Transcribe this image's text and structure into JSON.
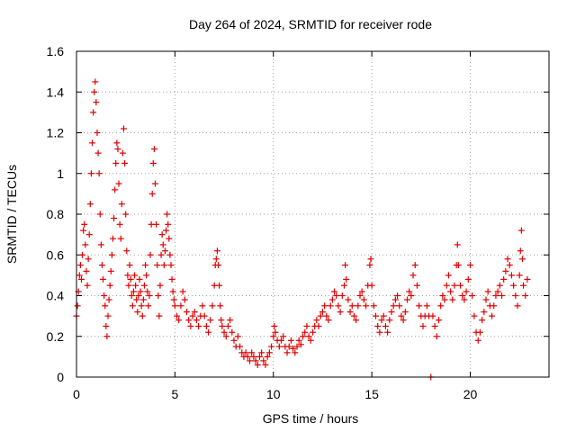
{
  "chart_data": {
    "type": "scatter",
    "title": "Day 264 of 2024, SRMTID for receiver rode",
    "xlabel": "GPS time / hours",
    "ylabel": "SRMTID / TECUs",
    "xlim": [
      0,
      24
    ],
    "ylim": [
      0,
      1.6
    ],
    "xticks": [
      0,
      5,
      10,
      15,
      20
    ],
    "yticks": [
      0,
      0.2,
      0.4,
      0.6,
      0.8,
      1,
      1.2,
      1.4,
      1.6
    ],
    "xtick_labels": [
      "0",
      "5",
      "10",
      "15",
      "20"
    ],
    "ytick_labels": [
      "0",
      "0.2",
      "0.4",
      "0.6",
      "0.8",
      "1",
      "1.2",
      "1.4",
      "1.6"
    ],
    "grid": true,
    "marker": "+",
    "color": "#e00000",
    "series": [
      {
        "name": "SRMTID",
        "points": [
          [
            0.0,
            0.3
          ],
          [
            0.05,
            0.35
          ],
          [
            0.1,
            0.42
          ],
          [
            0.15,
            0.5
          ],
          [
            0.2,
            0.55
          ],
          [
            0.25,
            0.48
          ],
          [
            0.3,
            0.6
          ],
          [
            0.35,
            0.72
          ],
          [
            0.4,
            0.75
          ],
          [
            0.45,
            0.65
          ],
          [
            0.5,
            0.52
          ],
          [
            0.55,
            0.45
          ],
          [
            0.6,
            0.58
          ],
          [
            0.65,
            0.7
          ],
          [
            0.7,
            0.85
          ],
          [
            0.75,
            1.0
          ],
          [
            0.8,
            1.15
          ],
          [
            0.85,
            1.3
          ],
          [
            0.9,
            1.4
          ],
          [
            0.95,
            1.45
          ],
          [
            1.0,
            1.35
          ],
          [
            1.05,
            1.2
          ],
          [
            1.1,
            1.1
          ],
          [
            1.15,
            1.0
          ],
          [
            1.2,
            0.8
          ],
          [
            1.25,
            0.65
          ],
          [
            1.3,
            0.55
          ],
          [
            1.35,
            0.48
          ],
          [
            1.4,
            0.4
          ],
          [
            1.45,
            0.35
          ],
          [
            1.5,
            0.25
          ],
          [
            1.55,
            0.2
          ],
          [
            1.6,
            0.3
          ],
          [
            1.65,
            0.38
          ],
          [
            1.7,
            0.45
          ],
          [
            1.75,
            0.52
          ],
          [
            1.8,
            0.6
          ],
          [
            1.85,
            0.68
          ],
          [
            1.9,
            0.78
          ],
          [
            1.95,
            0.92
          ],
          [
            2.0,
            1.05
          ],
          [
            2.05,
            1.15
          ],
          [
            2.1,
            1.12
          ],
          [
            2.15,
            0.95
          ],
          [
            2.2,
            0.75
          ],
          [
            2.25,
            0.68
          ],
          [
            2.3,
            0.85
          ],
          [
            2.35,
            1.1
          ],
          [
            2.4,
            1.22
          ],
          [
            2.45,
            1.05
          ],
          [
            2.5,
            0.8
          ],
          [
            2.55,
            0.62
          ],
          [
            2.6,
            0.5
          ],
          [
            2.65,
            0.45
          ],
          [
            2.7,
            0.55
          ],
          [
            2.75,
            0.48
          ],
          [
            2.8,
            0.4
          ],
          [
            2.85,
            0.35
          ],
          [
            2.9,
            0.42
          ],
          [
            2.95,
            0.5
          ],
          [
            3.0,
            0.45
          ],
          [
            3.05,
            0.38
          ],
          [
            3.1,
            0.32
          ],
          [
            3.15,
            0.4
          ],
          [
            3.2,
            0.48
          ],
          [
            3.25,
            0.42
          ],
          [
            3.3,
            0.35
          ],
          [
            3.35,
            0.3
          ],
          [
            3.4,
            0.38
          ],
          [
            3.45,
            0.45
          ],
          [
            3.5,
            0.55
          ],
          [
            3.55,
            0.5
          ],
          [
            3.6,
            0.42
          ],
          [
            3.65,
            0.35
          ],
          [
            3.7,
            0.4
          ],
          [
            3.75,
            0.6
          ],
          [
            3.8,
            0.75
          ],
          [
            3.85,
            0.9
          ],
          [
            3.9,
            1.05
          ],
          [
            3.95,
            1.12
          ],
          [
            4.0,
            0.95
          ],
          [
            4.05,
            0.75
          ],
          [
            4.1,
            0.55
          ],
          [
            4.15,
            0.4
          ],
          [
            4.2,
            0.3
          ],
          [
            4.25,
            0.45
          ],
          [
            4.3,
            0.6
          ],
          [
            4.35,
            0.7
          ],
          [
            4.4,
            0.65
          ],
          [
            4.45,
            0.55
          ],
          [
            4.5,
            0.62
          ],
          [
            4.55,
            0.72
          ],
          [
            4.6,
            0.8
          ],
          [
            4.65,
            0.75
          ],
          [
            4.7,
            0.68
          ],
          [
            4.75,
            0.6
          ],
          [
            4.8,
            0.55
          ],
          [
            4.85,
            0.48
          ],
          [
            4.9,
            0.42
          ],
          [
            4.95,
            0.38
          ],
          [
            5.0,
            0.35
          ],
          [
            5.1,
            0.3
          ],
          [
            5.2,
            0.28
          ],
          [
            5.3,
            0.35
          ],
          [
            5.4,
            0.42
          ],
          [
            5.5,
            0.38
          ],
          [
            5.6,
            0.32
          ],
          [
            5.7,
            0.28
          ],
          [
            5.8,
            0.25
          ],
          [
            5.9,
            0.3
          ],
          [
            6.0,
            0.32
          ],
          [
            6.1,
            0.28
          ],
          [
            6.2,
            0.25
          ],
          [
            6.3,
            0.3
          ],
          [
            6.4,
            0.35
          ],
          [
            6.5,
            0.3
          ],
          [
            6.6,
            0.25
          ],
          [
            6.7,
            0.22
          ],
          [
            6.8,
            0.28
          ],
          [
            6.9,
            0.35
          ],
          [
            7.0,
            0.45
          ],
          [
            7.05,
            0.55
          ],
          [
            7.1,
            0.58
          ],
          [
            7.15,
            0.62
          ],
          [
            7.2,
            0.55
          ],
          [
            7.25,
            0.45
          ],
          [
            7.3,
            0.35
          ],
          [
            7.35,
            0.28
          ],
          [
            7.4,
            0.25
          ],
          [
            7.5,
            0.22
          ],
          [
            7.6,
            0.2
          ],
          [
            7.7,
            0.25
          ],
          [
            7.8,
            0.28
          ],
          [
            7.9,
            0.22
          ],
          [
            8.0,
            0.18
          ],
          [
            8.1,
            0.15
          ],
          [
            8.2,
            0.2
          ],
          [
            8.3,
            0.15
          ],
          [
            8.4,
            0.12
          ],
          [
            8.5,
            0.1
          ],
          [
            8.6,
            0.12
          ],
          [
            8.7,
            0.1
          ],
          [
            8.8,
            0.08
          ],
          [
            8.9,
            0.12
          ],
          [
            9.0,
            0.1
          ],
          [
            9.1,
            0.08
          ],
          [
            9.2,
            0.06
          ],
          [
            9.3,
            0.1
          ],
          [
            9.4,
            0.12
          ],
          [
            9.5,
            0.08
          ],
          [
            9.6,
            0.06
          ],
          [
            9.7,
            0.1
          ],
          [
            9.8,
            0.12
          ],
          [
            9.9,
            0.15
          ],
          [
            10.0,
            0.2
          ],
          [
            10.05,
            0.25
          ],
          [
            10.1,
            0.22
          ],
          [
            10.2,
            0.18
          ],
          [
            10.3,
            0.15
          ],
          [
            10.4,
            0.18
          ],
          [
            10.5,
            0.2
          ],
          [
            10.6,
            0.15
          ],
          [
            10.7,
            0.12
          ],
          [
            10.8,
            0.15
          ],
          [
            10.9,
            0.18
          ],
          [
            11.0,
            0.14
          ],
          [
            11.1,
            0.12
          ],
          [
            11.2,
            0.15
          ],
          [
            11.3,
            0.18
          ],
          [
            11.4,
            0.16
          ],
          [
            11.5,
            0.2
          ],
          [
            11.6,
            0.22
          ],
          [
            11.7,
            0.25
          ],
          [
            11.8,
            0.2
          ],
          [
            11.9,
            0.18
          ],
          [
            12.0,
            0.22
          ],
          [
            12.1,
            0.25
          ],
          [
            12.2,
            0.28
          ],
          [
            12.3,
            0.25
          ],
          [
            12.4,
            0.3
          ],
          [
            12.5,
            0.32
          ],
          [
            12.6,
            0.35
          ],
          [
            12.7,
            0.3
          ],
          [
            12.8,
            0.28
          ],
          [
            12.9,
            0.35
          ],
          [
            13.0,
            0.38
          ],
          [
            13.1,
            0.42
          ],
          [
            13.2,
            0.4
          ],
          [
            13.3,
            0.35
          ],
          [
            13.4,
            0.32
          ],
          [
            13.5,
            0.4
          ],
          [
            13.6,
            0.45
          ],
          [
            13.65,
            0.55
          ],
          [
            13.7,
            0.48
          ],
          [
            13.8,
            0.38
          ],
          [
            13.9,
            0.32
          ],
          [
            14.0,
            0.35
          ],
          [
            14.1,
            0.3
          ],
          [
            14.2,
            0.28
          ],
          [
            14.3,
            0.35
          ],
          [
            14.4,
            0.4
          ],
          [
            14.5,
            0.42
          ],
          [
            14.6,
            0.38
          ],
          [
            14.7,
            0.35
          ],
          [
            14.8,
            0.45
          ],
          [
            14.9,
            0.55
          ],
          [
            14.95,
            0.58
          ],
          [
            15.0,
            0.45
          ],
          [
            15.1,
            0.35
          ],
          [
            15.2,
            0.3
          ],
          [
            15.3,
            0.25
          ],
          [
            15.4,
            0.22
          ],
          [
            15.5,
            0.28
          ],
          [
            15.6,
            0.3
          ],
          [
            15.7,
            0.25
          ],
          [
            15.8,
            0.22
          ],
          [
            15.9,
            0.28
          ],
          [
            16.0,
            0.32
          ],
          [
            16.1,
            0.35
          ],
          [
            16.2,
            0.38
          ],
          [
            16.3,
            0.4
          ],
          [
            16.4,
            0.35
          ],
          [
            16.5,
            0.3
          ],
          [
            16.6,
            0.28
          ],
          [
            16.7,
            0.32
          ],
          [
            16.8,
            0.38
          ],
          [
            16.9,
            0.42
          ],
          [
            17.0,
            0.4
          ],
          [
            17.1,
            0.5
          ],
          [
            17.2,
            0.55
          ],
          [
            17.3,
            0.45
          ],
          [
            17.4,
            0.35
          ],
          [
            17.5,
            0.3
          ],
          [
            17.6,
            0.25
          ],
          [
            17.7,
            0.3
          ],
          [
            17.8,
            0.35
          ],
          [
            17.9,
            0.3
          ],
          [
            18.0,
            0.0
          ],
          [
            18.1,
            0.3
          ],
          [
            18.2,
            0.25
          ],
          [
            18.3,
            0.2
          ],
          [
            18.4,
            0.28
          ],
          [
            18.5,
            0.35
          ],
          [
            18.6,
            0.4
          ],
          [
            18.7,
            0.38
          ],
          [
            18.8,
            0.45
          ],
          [
            18.9,
            0.5
          ],
          [
            19.0,
            0.42
          ],
          [
            19.1,
            0.38
          ],
          [
            19.2,
            0.45
          ],
          [
            19.3,
            0.55
          ],
          [
            19.35,
            0.65
          ],
          [
            19.4,
            0.55
          ],
          [
            19.5,
            0.45
          ],
          [
            19.6,
            0.4
          ],
          [
            19.7,
            0.38
          ],
          [
            19.8,
            0.42
          ],
          [
            19.9,
            0.48
          ],
          [
            20.0,
            0.55
          ],
          [
            20.1,
            0.4
          ],
          [
            20.2,
            0.3
          ],
          [
            20.3,
            0.22
          ],
          [
            20.4,
            0.18
          ],
          [
            20.5,
            0.22
          ],
          [
            20.6,
            0.28
          ],
          [
            20.7,
            0.32
          ],
          [
            20.8,
            0.38
          ],
          [
            20.9,
            0.42
          ],
          [
            21.0,
            0.35
          ],
          [
            21.1,
            0.3
          ],
          [
            21.2,
            0.35
          ],
          [
            21.3,
            0.4
          ],
          [
            21.4,
            0.42
          ],
          [
            21.5,
            0.45
          ],
          [
            21.6,
            0.4
          ],
          [
            21.7,
            0.48
          ],
          [
            21.8,
            0.52
          ],
          [
            21.9,
            0.58
          ],
          [
            22.0,
            0.55
          ],
          [
            22.1,
            0.5
          ],
          [
            22.2,
            0.45
          ],
          [
            22.3,
            0.4
          ],
          [
            22.4,
            0.35
          ],
          [
            22.5,
            0.5
          ],
          [
            22.55,
            0.62
          ],
          [
            22.6,
            0.72
          ],
          [
            22.65,
            0.58
          ],
          [
            22.7,
            0.45
          ],
          [
            22.8,
            0.4
          ],
          [
            22.9,
            0.48
          ]
        ]
      }
    ]
  }
}
